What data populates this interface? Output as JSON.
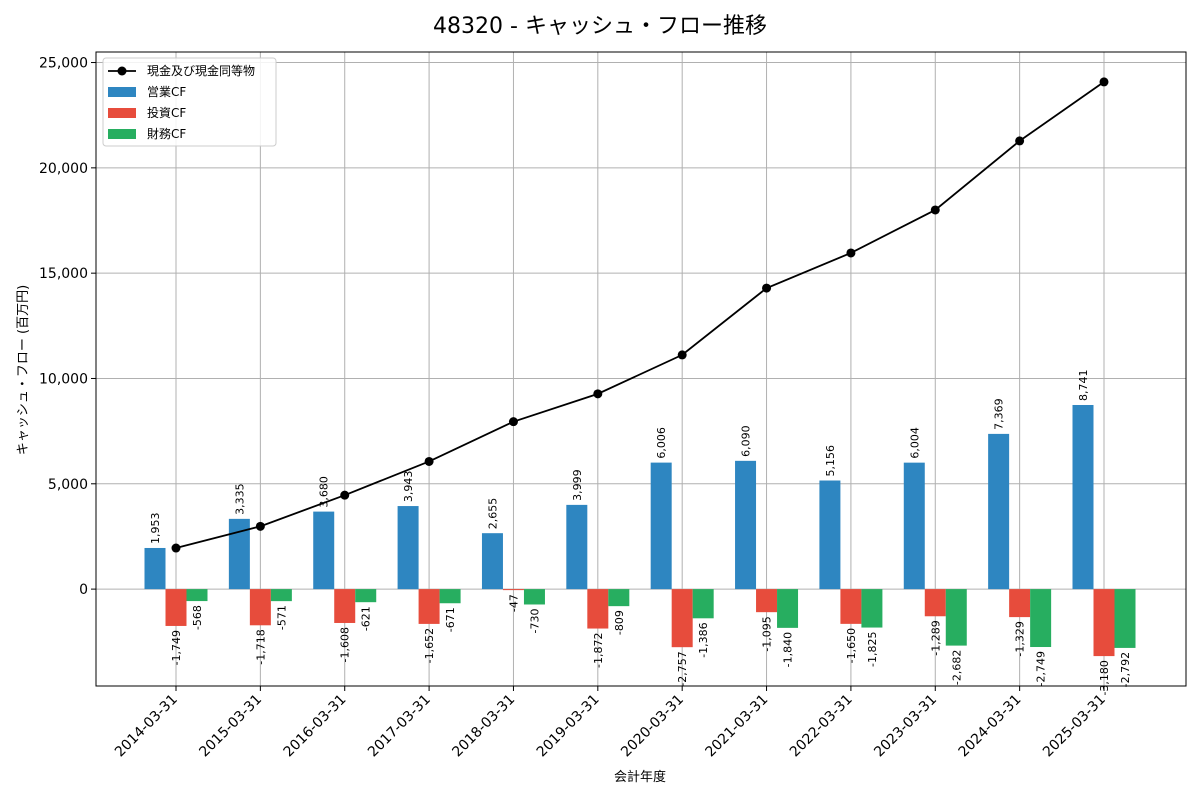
{
  "chart_data": {
    "type": "bar",
    "title": "48320 - キャッシュ・フロー推移",
    "xlabel": "会計年度",
    "ylabel": "キャッシュ・フロー (百万円)",
    "categories": [
      "2014-03-31",
      "2015-03-31",
      "2016-03-31",
      "2017-03-31",
      "2018-03-31",
      "2019-03-31",
      "2020-03-31",
      "2021-03-31",
      "2022-03-31",
      "2023-03-31",
      "2024-03-31",
      "2025-03-31"
    ],
    "ylim": [
      -4600,
      25500
    ],
    "yticks": [
      0,
      5000,
      10000,
      15000,
      20000,
      25000
    ],
    "ytick_labels": [
      "0",
      "5,000",
      "10,000",
      "15,000",
      "20,000",
      "25,000"
    ],
    "grid": true,
    "legend_position": "top-left",
    "series": [
      {
        "name": "営業CF",
        "kind": "bar",
        "color": "#2e86c1",
        "values": [
          1953,
          3335,
          3680,
          3943,
          2655,
          3999,
          6006,
          6090,
          5156,
          6004,
          7369,
          8741
        ],
        "labels": [
          "1,953",
          "3,335",
          "3,680",
          "3,943",
          "2,655",
          "3,999",
          "6,006",
          "6,090",
          "5,156",
          "6,004",
          "7,369",
          "8,741"
        ]
      },
      {
        "name": "投資CF",
        "kind": "bar",
        "color": "#e74c3c",
        "values": [
          -1749,
          -1718,
          -1608,
          -1652,
          -47,
          -1872,
          -2757,
          -1095,
          -1650,
          -1289,
          -1329,
          -3180
        ],
        "labels": [
          "-1,749",
          "-1,718",
          "-1,608",
          "-1,652",
          "-47",
          "-1,872",
          "-2,757",
          "-1,095",
          "-1,650",
          "-1,289",
          "-1,329",
          "-3,180"
        ]
      },
      {
        "name": "財務CF",
        "kind": "bar",
        "color": "#27ae60",
        "values": [
          -568,
          -571,
          -621,
          -671,
          -730,
          -809,
          -1386,
          -1840,
          -1825,
          -2682,
          -2749,
          -2792
        ],
        "labels": [
          "-568",
          "-571",
          "-621",
          "-671",
          "-730",
          "-809",
          "-1,386",
          "-1,840",
          "-1,825",
          "-2,682",
          "-2,749",
          "-2,792"
        ]
      },
      {
        "name": "現金及び現金同等物",
        "kind": "line",
        "color": "#000000",
        "values": [
          1950,
          2980,
          4460,
          6060,
          7950,
          9270,
          11120,
          14290,
          15960,
          18000,
          21280,
          24080
        ]
      }
    ]
  }
}
